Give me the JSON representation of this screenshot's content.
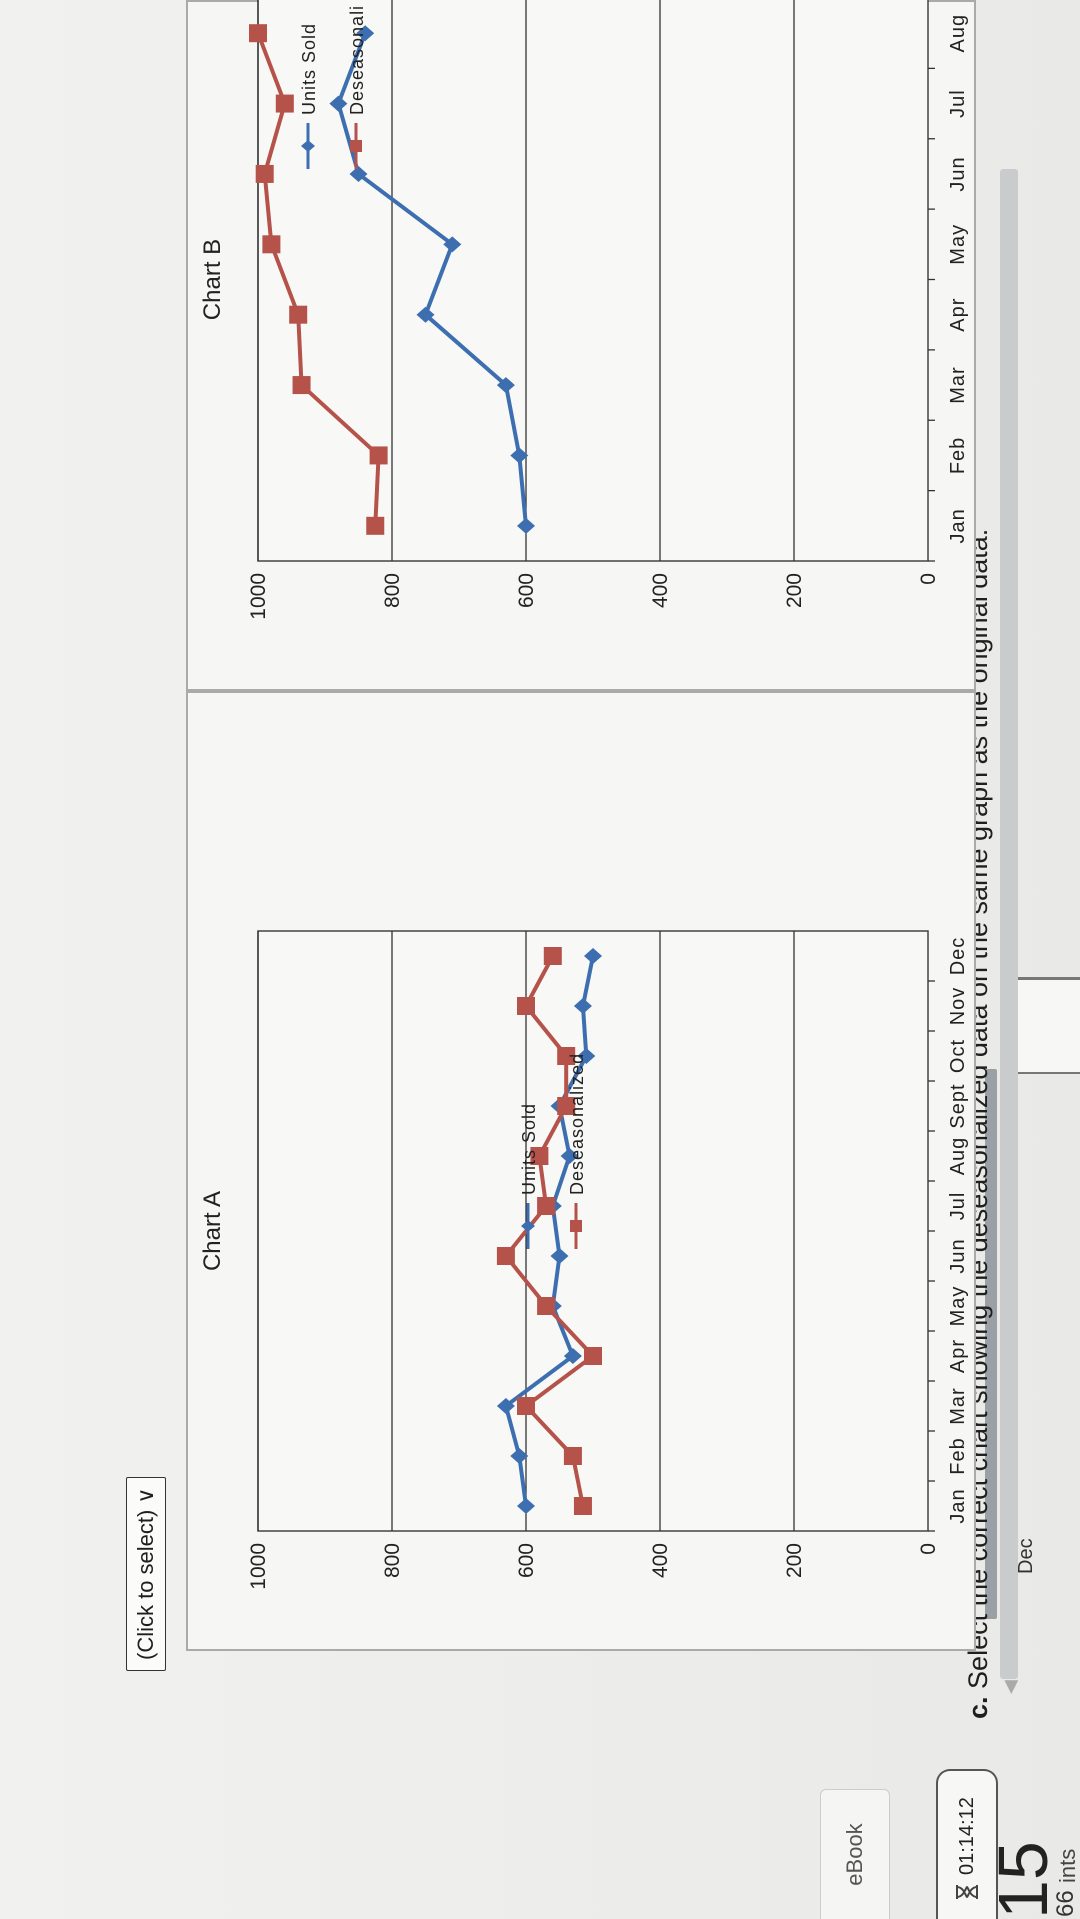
{
  "header": {
    "question_number_fragment": "15",
    "tab_label": "Dec",
    "score_fragment": "66",
    "points_fragment": "ints",
    "timer": "01:14:12",
    "ebook_label": "eBook"
  },
  "question": {
    "prefix": "c.",
    "text": "Select the correct chart showing the deseasonalized data on the same graph as the original data."
  },
  "answer_select": {
    "placeholder": "(Click to select)"
  },
  "colors": {
    "units_sold": "#3d6fb0",
    "deseasonalized": "#b5524a"
  },
  "chart_data": [
    {
      "type": "line",
      "title": "Chart A",
      "categories": [
        "Jan",
        "Feb",
        "Mar",
        "Apr",
        "May",
        "Jun",
        "Jul",
        "Aug",
        "Sept",
        "Oct",
        "Nov",
        "Dec"
      ],
      "series": [
        {
          "name": "Units Sold",
          "values": [
            600,
            610,
            630,
            530,
            560,
            550,
            560,
            535,
            550,
            510,
            515,
            500
          ]
        },
        {
          "name": "Deseasonalized",
          "values": [
            515,
            530,
            600,
            500,
            570,
            630,
            570,
            580,
            540,
            540,
            600,
            560
          ]
        }
      ],
      "ylim": [
        0,
        1000
      ],
      "yticks": [
        "0",
        "200",
        "400",
        "600",
        "800",
        "1000"
      ],
      "legend": "right"
    },
    {
      "type": "line",
      "title": "Chart B",
      "categories": [
        "Jan",
        "Feb",
        "Mar",
        "Apr",
        "May",
        "Jun",
        "Jul",
        "Aug"
      ],
      "series": [
        {
          "name": "Units Sold",
          "values": [
            600,
            610,
            630,
            750,
            710,
            850,
            880,
            840
          ]
        },
        {
          "name": "Deseasonalized",
          "values": [
            825,
            820,
            935,
            940,
            980,
            990,
            960,
            1000
          ]
        }
      ],
      "ylim": [
        0,
        1000
      ],
      "yticks": [
        "0",
        "200",
        "400",
        "600",
        "800",
        "1000"
      ],
      "legend_labels": [
        "Units Sold",
        "Deseasonali"
      ],
      "legend": "right"
    }
  ]
}
